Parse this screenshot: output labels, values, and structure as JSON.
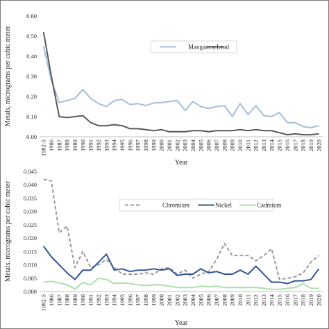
{
  "chart_data": [
    {
      "type": "line",
      "xlabel": "Year",
      "ylabel": "Metals, micrograms per cubic meter",
      "ylim": [
        0,
        0.6
      ],
      "yticks": [
        "0.00",
        "0.10",
        "0.20",
        "0.30",
        "0.40",
        "0.50",
        "0.60"
      ],
      "x": [
        "1982-5",
        "1986",
        "1987",
        "1988",
        "1989",
        "1990",
        "1991",
        "1992",
        "1993",
        "1994",
        "1995",
        "1996",
        "1997",
        "1998",
        "1999",
        "2000",
        "2001",
        "2002",
        "2003",
        "2004",
        "2005",
        "2006",
        "2007",
        "2008",
        "2009",
        "2010",
        "2011",
        "2012",
        "2013",
        "2014",
        "2015",
        "2016",
        "2017",
        "2018",
        "2019",
        "2020"
      ],
      "legend_position": "top-right",
      "series": [
        {
          "name": "Manganese",
          "color": "#a6bddb",
          "dash": "",
          "values": [
            0.45,
            0.28,
            0.17,
            0.18,
            0.19,
            0.235,
            0.19,
            0.165,
            0.15,
            0.18,
            0.185,
            0.16,
            0.165,
            0.155,
            0.168,
            0.17,
            0.175,
            0.18,
            0.13,
            0.175,
            0.15,
            0.14,
            0.15,
            0.155,
            0.1,
            0.165,
            0.11,
            0.155,
            0.105,
            0.1,
            0.12,
            0.07,
            0.07,
            0.05,
            0.045,
            0.055
          ]
        },
        {
          "name": "Lead",
          "color": "#595959",
          "dash": "",
          "values": [
            0.52,
            0.3,
            0.1,
            0.095,
            0.1,
            0.105,
            0.07,
            0.055,
            0.055,
            0.06,
            0.055,
            0.04,
            0.04,
            0.035,
            0.03,
            0.035,
            0.025,
            0.025,
            0.025,
            0.03,
            0.03,
            0.025,
            0.03,
            0.03,
            0.03,
            0.035,
            0.03,
            0.035,
            0.03,
            0.03,
            0.02,
            0.01,
            0.015,
            0.01,
            0.01,
            0.015
          ]
        }
      ]
    },
    {
      "type": "line",
      "xlabel": "Year",
      "ylabel": "Metals, micrograms per cubic meter",
      "ylim": [
        0,
        0.045
      ],
      "yticks": [
        "0.000",
        "0.005",
        "0.010",
        "0.015",
        "0.020",
        "0.025",
        "0.030",
        "0.035",
        "0.040",
        "0.045"
      ],
      "x": [
        "1982-5",
        "1986",
        "1987",
        "1988",
        "1989",
        "1990",
        "1991",
        "1992",
        "1993",
        "1994",
        "1995",
        "1996",
        "1997",
        "1998",
        "1999",
        "2000",
        "2001",
        "2002",
        "2003",
        "2004",
        "2005",
        "2006",
        "2007",
        "2008",
        "2009",
        "2010",
        "2011",
        "2012",
        "2013",
        "2014",
        "2015",
        "2016",
        "2017",
        "2018",
        "2019",
        "2020"
      ],
      "legend_position": "top",
      "series": [
        {
          "name": "Chromium",
          "color": "#999999",
          "dash": "5,3",
          "values": [
            0.042,
            0.0415,
            0.022,
            0.0245,
            0.009,
            0.015,
            0.009,
            0.01,
            0.012,
            0.009,
            0.0065,
            0.0065,
            0.0065,
            0.007,
            0.0065,
            0.0085,
            0.009,
            0.0065,
            0.008,
            0.005,
            0.0065,
            0.0075,
            0.012,
            0.018,
            0.0135,
            0.0135,
            0.0135,
            0.0115,
            0.0135,
            0.016,
            0.0045,
            0.005,
            0.0055,
            0.007,
            0.011,
            0.0135
          ]
        },
        {
          "name": "Nickel",
          "color": "#2f5597",
          "dash": "",
          "values": [
            0.017,
            0.013,
            0.01,
            0.007,
            0.0045,
            0.008,
            0.008,
            0.011,
            0.014,
            0.008,
            0.0085,
            0.0075,
            0.008,
            0.008,
            0.0085,
            0.008,
            0.0085,
            0.006,
            0.0065,
            0.0065,
            0.0085,
            0.007,
            0.0075,
            0.0065,
            0.0065,
            0.008,
            0.0065,
            0.0095,
            0.0065,
            0.0035,
            0.0035,
            0.003,
            0.004,
            0.004,
            0.0045,
            0.0085
          ]
        },
        {
          "name": "Cadmium",
          "color": "#a9e0a9",
          "dash": "",
          "values": [
            0.0035,
            0.0038,
            0.0032,
            0.0025,
            0.001,
            0.0033,
            0.0025,
            0.005,
            0.0045,
            0.003,
            0.0032,
            0.003,
            0.0025,
            0.0023,
            0.0025,
            0.0025,
            0.002,
            0.0015,
            0.0015,
            0.0015,
            0.002,
            0.0018,
            0.002,
            0.0015,
            0.0015,
            0.0015,
            0.0015,
            0.0015,
            0.0012,
            0.0008,
            0.0008,
            0.0012,
            0.0015,
            0.003,
            0.0012,
            0.0012
          ]
        }
      ]
    }
  ]
}
